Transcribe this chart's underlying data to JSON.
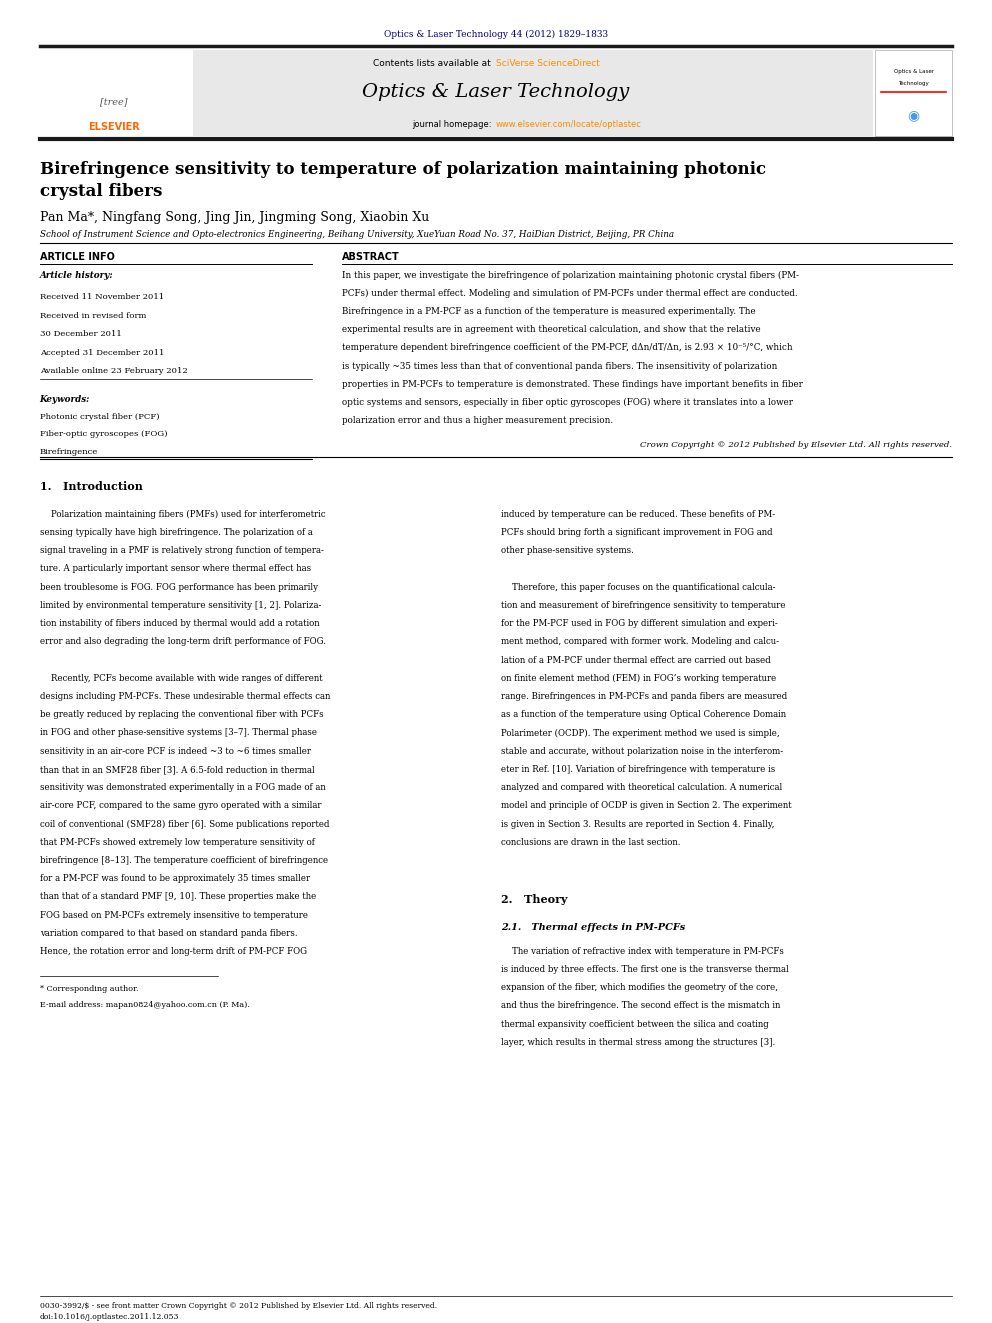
{
  "page_width": 9.92,
  "page_height": 13.23,
  "bg_color": "#ffffff",
  "top_journal_ref": "Optics & Laser Technology 44 (2012) 1829–1833",
  "journal_ref_color": "#000080",
  "header_bg": "#e8e8e8",
  "header_title": "Optics & Laser Technology",
  "link_color": "#ff8c00",
  "homepage_link": "www.elsevier.com/locate/optlastec",
  "paper_title": "Birefringence sensitivity to temperature of polarization maintaining photonic\ncrystal fibers",
  "authors": "Pan Ma*, Ningfang Song, Jing Jin, Jingming Song, Xiaobin Xu",
  "affiliation": "School of Instrument Science and Opto-electronics Engineering, Beihang University, XueYuan Road No. 37, HaiDian District, Beijing, PR China",
  "article_info_title": "ARTICLE INFO",
  "abstract_title": "ABSTRACT",
  "article_history_label": "Article history:",
  "received_1": "Received 11 November 2011",
  "received_revised": "Received in revised form",
  "received_revised_date": "30 December 2011",
  "accepted": "Accepted 31 December 2011",
  "available": "Available online 23 February 2012",
  "keywords_label": "Keywords:",
  "keyword_1": "Photonic crystal fiber (PCF)",
  "keyword_2": "Fiber-optic gyroscopes (FOG)",
  "keyword_3": "Birefringence",
  "abstract_text": "In this paper, we investigate the birefringence of polarization maintaining photonic crystal fibers (PM-PCFs) under thermal effect. Modeling and simulation of PM-PCFs under thermal effect are conducted. Birefringence in a PM-PCF as a function of the temperature is measured experimentally. The experimental results are in agreement with theoretical calculation, and show that the relative temperature dependent birefringence coefficient of the PM-PCF, dΔn/dT/Δn, is 2.93 × 10⁻⁵/°C, which is typically ~35 times less than that of conventional panda fibers. The insensitivity of polarization properties in PM-PCFs to temperature is demonstrated. These findings have important benefits in fiber optic systems and sensors, especially in fiber optic gyroscopes (FOG) where it translates into a lower polarization error and thus a higher measurement precision.",
  "copyright": "Crown Copyright © 2012 Published by Elsevier Ltd. All rights reserved.",
  "section1_title": "1.   Introduction",
  "footnote": "* Corresponding author.",
  "footnote_email": "E-mail address: mapan0824@yahoo.com.cn (P. Ma).",
  "issn_line": "0030-3992/$ - see front matter Crown Copyright © 2012 Published by Elsevier Ltd. All rights reserved.",
  "doi_line": "doi:10.1016/j.optlastec.2011.12.053",
  "black_bar_color": "#1a1a1a",
  "separator_color": "#000000",
  "intro1_lines": [
    "    Polarization maintaining fibers (PMFs) used for interferometric",
    "sensing typically have high birefringence. The polarization of a",
    "signal traveling in a PMF is relatively strong function of tempera-",
    "ture. A particularly important sensor where thermal effect has",
    "been troublesome is FOG. FOG performance has been primarily",
    "limited by environmental temperature sensitivity [1, 2]. Polariza-",
    "tion instability of fibers induced by thermal would add a rotation",
    "error and also degrading the long-term drift performance of FOG.",
    "",
    "    Recently, PCFs become available with wide ranges of different",
    "designs including PM-PCFs. These undesirable thermal effects can",
    "be greatly reduced by replacing the conventional fiber with PCFs",
    "in FOG and other phase-sensitive systems [3–7]. Thermal phase",
    "sensitivity in an air-core PCF is indeed ~3 to ~6 times smaller",
    "than that in an SMF28 fiber [3]. A 6.5-fold reduction in thermal",
    "sensitivity was demonstrated experimentally in a FOG made of an",
    "air-core PCF, compared to the same gyro operated with a similar",
    "coil of conventional (SMF28) fiber [6]. Some publications reported",
    "that PM-PCFs showed extremely low temperature sensitivity of",
    "birefringence [8–13]. The temperature coefficient of birefringence",
    "for a PM-PCF was found to be approximately 35 times smaller",
    "than that of a standard PMF [9, 10]. These properties make the",
    "FOG based on PM-PCFs extremely insensitive to temperature",
    "variation compared to that based on standard panda fibers.",
    "Hence, the rotation error and long-term drift of PM-PCF FOG"
  ],
  "intro2_lines": [
    "induced by temperature can be reduced. These benefits of PM-",
    "PCFs should bring forth a significant improvement in FOG and",
    "other phase-sensitive systems.",
    "",
    "    Therefore, this paper focuses on the quantificational calcula-",
    "tion and measurement of birefringence sensitivity to temperature",
    "for the PM-PCF used in FOG by different simulation and experi-",
    "ment method, compared with former work. Modeling and calcu-",
    "lation of a PM-PCF under thermal effect are carried out based",
    "on finite element method (FEM) in FOG’s working temperature",
    "range. Birefringences in PM-PCFs and panda fibers are measured",
    "as a function of the temperature using Optical Coherence Domain",
    "Polarimeter (OCDP). The experiment method we used is simple,",
    "stable and accurate, without polarization noise in the interferom-",
    "eter in Ref. [10]. Variation of birefringence with temperature is",
    "analyzed and compared with theoretical calculation. A numerical",
    "model and principle of OCDP is given in Section 2. The experiment",
    "is given in Section 3. Results are reported in Section 4. Finally,",
    "conclusions are drawn in the last section."
  ],
  "section2_title": "2.   Theory",
  "section21_title": "2.1.   Thermal effects in PM-PCFs",
  "theory_lines": [
    "    The variation of refractive index with temperature in PM-PCFs",
    "is induced by three effects. The first one is the transverse thermal",
    "expansion of the fiber, which modifies the geometry of the core,",
    "and thus the birefringence. The second effect is the mismatch in",
    "thermal expansivity coefficient between the silica and coating",
    "layer, which results in thermal stress among the structures [3]."
  ]
}
